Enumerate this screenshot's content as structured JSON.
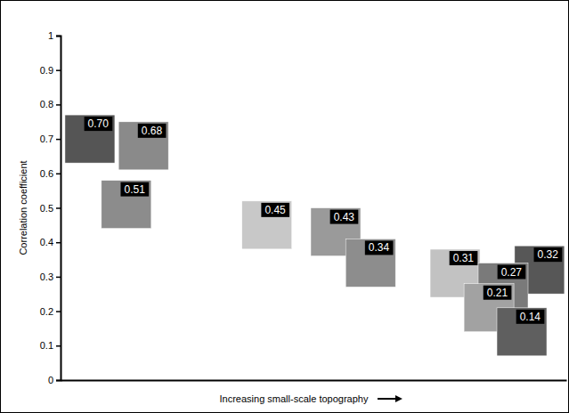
{
  "chart_data": {
    "type": "scatter",
    "x": [
      5.8,
      16.4,
      13.0,
      40.8,
      54.4,
      61.3,
      78.0,
      94.7,
      87.5,
      84.7,
      91.2
    ],
    "values": [
      0.7,
      0.68,
      0.51,
      0.45,
      0.43,
      0.34,
      0.31,
      0.32,
      0.27,
      0.21,
      0.14
    ],
    "value_labels": [
      "0.70",
      "0.68",
      "0.51",
      "0.45",
      "0.43",
      "0.34",
      "0.31",
      "0.32",
      "0.27",
      "0.21",
      "0.14"
    ],
    "colors": [
      "#555555",
      "#8a8a8a",
      "#8c8c8c",
      "#c8c8c8",
      "#9a9a9a",
      "#8d8d8d",
      "#c2c2c2",
      "#575757",
      "#7a7a7a",
      "#a2a2a2",
      "#5f5f5f"
    ],
    "xlim": [
      0,
      100
    ],
    "xticks": [],
    "ylim": [
      0,
      1
    ],
    "yticks": [
      0,
      0.1,
      0.2,
      0.3,
      0.4,
      0.5,
      0.6,
      0.7,
      0.8,
      0.9,
      1
    ],
    "xlabel": "Increasing small-scale topography",
    "ylabel": "Correlation coefficient",
    "marker": "square",
    "data_labels": true,
    "tick_labels": "y",
    "grid": false
  }
}
